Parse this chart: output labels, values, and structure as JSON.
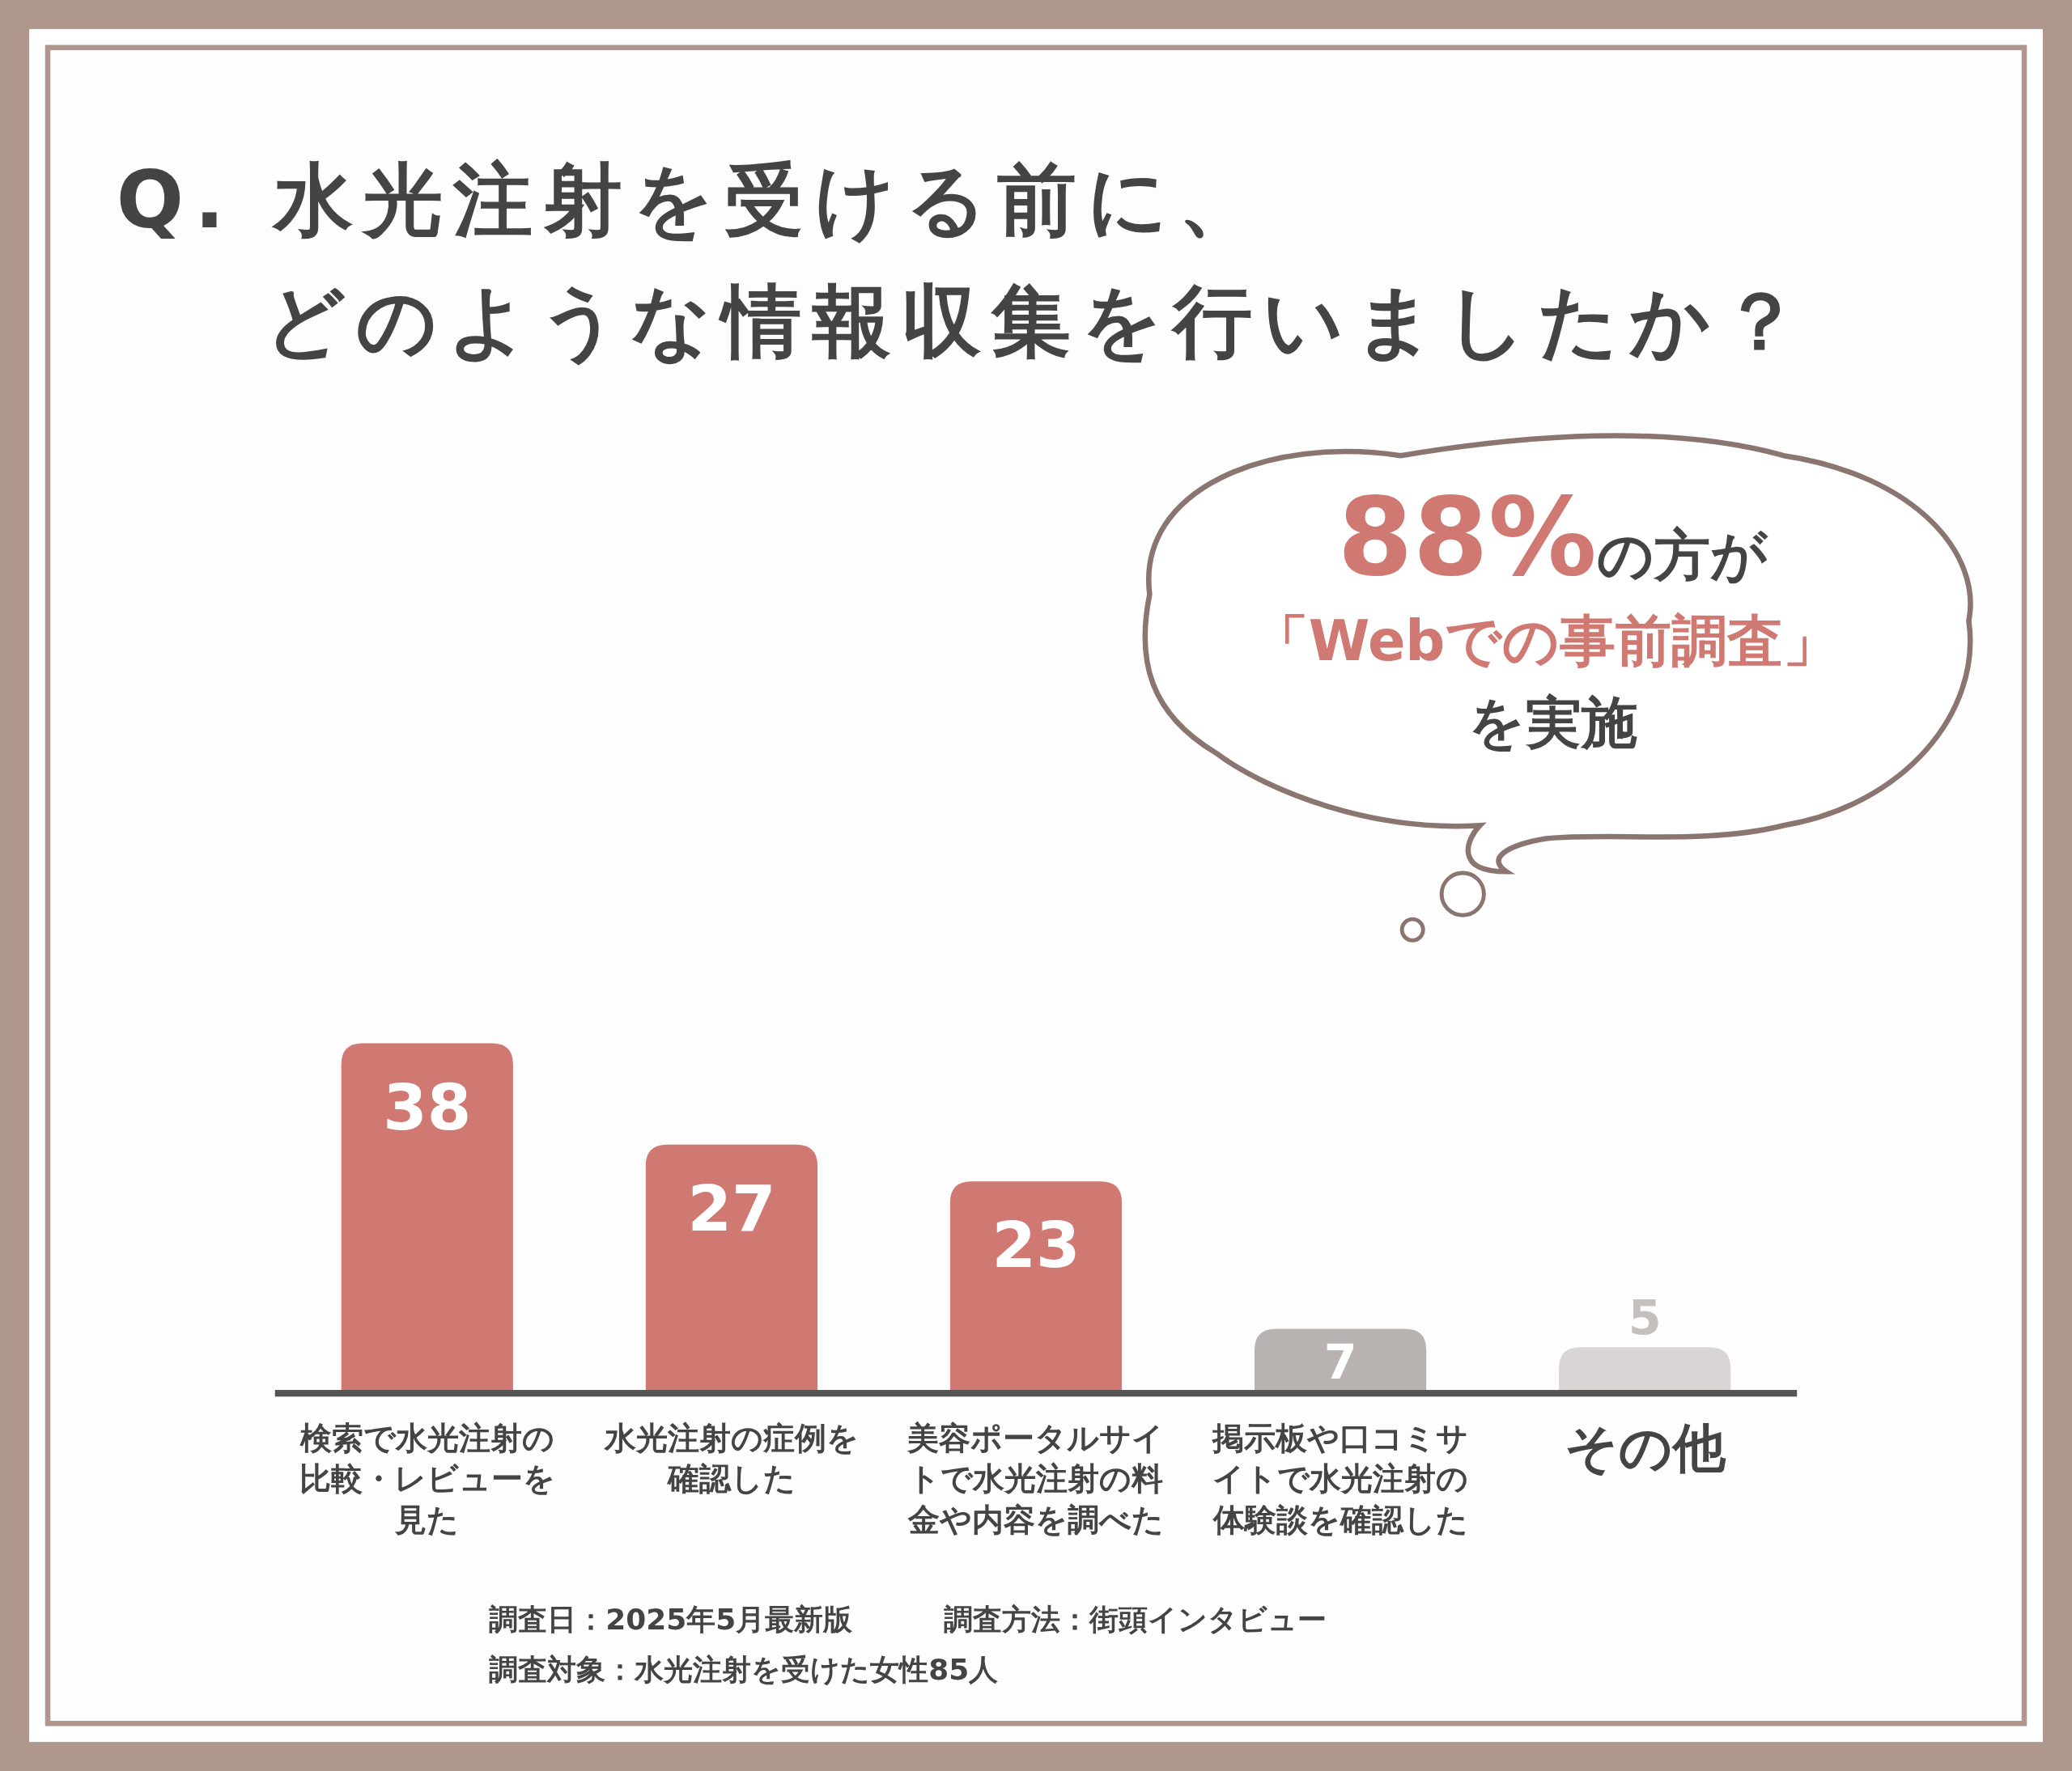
{
  "chart_data": {
    "type": "bar",
    "title": "Q. 水光注射を受ける前に、どのような情報収集を行いましたか？",
    "categories": [
      "検索で水光注射の比較・レビューを見た",
      "水光注射の症例を確認した",
      "美容ポータルサイトで水光注射の料金や内容を調べた",
      "掲示板や口コミサイトで水光注射の体験談を確認した",
      "その他"
    ],
    "values": [
      38,
      27,
      23,
      7,
      5
    ],
    "colors": [
      "#d07872",
      "#d07872",
      "#d07872",
      "#b8b3b1",
      "#d8d5d4"
    ],
    "data_labels": true,
    "annotations": [
      "88%の方が",
      "「Webでの事前調査」",
      "を実施",
      "調査日：2025年5月最新版",
      "調査方法：街頭インタビュー",
      "調査対象：水光注射を受けた女性85人"
    ]
  }
}
